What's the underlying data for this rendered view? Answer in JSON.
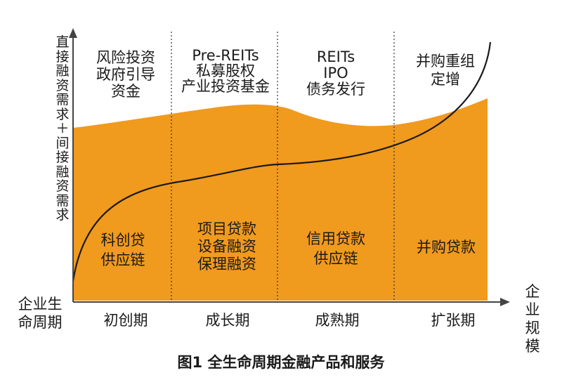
{
  "figure": {
    "caption": "图1 全生命周期金融产品和服务",
    "y_axis_label": "直接融资需求＋间接融资需求",
    "x_axis_label": "企业规模",
    "stage_axis_label": "企业生命周期",
    "colors": {
      "area": "#f09a1e",
      "curve": "#1a1a1a",
      "axis": "#444444",
      "text": "#1a1a1a"
    },
    "stages": [
      {
        "name": "初创期",
        "direct": [
          "风险投资",
          "政府引导",
          "资金"
        ],
        "indirect": [
          "科创贷",
          "供应链"
        ]
      },
      {
        "name": "成长期",
        "direct": [
          "Pre-REITs",
          "私募股权",
          "产业投资基金"
        ],
        "indirect": [
          "项目贷款",
          "设备融资",
          "保理融资"
        ]
      },
      {
        "name": "成熟期",
        "direct": [
          "REITs",
          "IPO",
          "债务发行"
        ],
        "indirect": [
          "信用贷款",
          "供应链"
        ]
      },
      {
        "name": "扩张期",
        "direct": [
          "并购重组",
          "定增"
        ],
        "indirect": [
          "并购贷款"
        ]
      }
    ]
  }
}
